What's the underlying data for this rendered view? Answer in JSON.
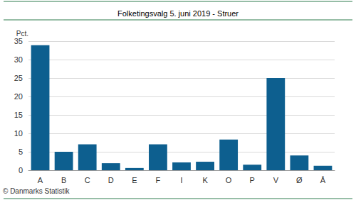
{
  "chart_data": {
    "type": "bar",
    "title": "Folketingsvalg 5. juni 2019 - Struer",
    "y_label": "Pct.",
    "annotations": [
      "© Danmarks Statistik"
    ],
    "categories": [
      "A",
      "B",
      "C",
      "D",
      "E",
      "F",
      "I",
      "K",
      "O",
      "P",
      "V",
      "Ø",
      "Å"
    ],
    "values": [
      33.9,
      5.0,
      7.0,
      1.9,
      0.6,
      7.0,
      2.1,
      2.3,
      8.3,
      1.5,
      25.0,
      4.0,
      1.2
    ],
    "color": "#0d5f8f",
    "ylim": [
      0,
      35
    ],
    "yticks": [
      0,
      5,
      10,
      15,
      20,
      25,
      30,
      35
    ],
    "grid": true
  }
}
